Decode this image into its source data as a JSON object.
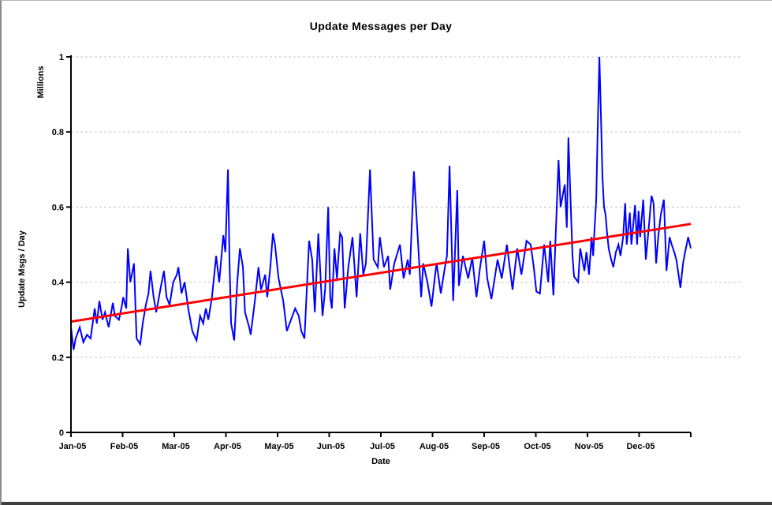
{
  "chart_data": {
    "type": "line",
    "title": "Update Messages per Day",
    "xlabel": "Date",
    "ylabel": "Update Msgs / Day",
    "y_unit_label": "Millions",
    "x_tick_labels": [
      "Jan-05",
      "Feb-05",
      "Mar-05",
      "Apr-05",
      "May-05",
      "Jun-05",
      "Jul-05",
      "Aug-05",
      "Sep-05",
      "Oct-05",
      "Nov-05",
      "Dec-05"
    ],
    "y_tick_labels": [
      "0",
      "0.2",
      "0.4",
      "0.6",
      "0.8",
      "1"
    ],
    "y_tick_values": [
      0,
      0.2,
      0.4,
      0.6,
      0.8,
      1
    ],
    "xlim_months": [
      0,
      12
    ],
    "ylim": [
      0,
      1
    ],
    "grid": "horizontal-dashed",
    "legend": "none",
    "colors": {
      "daily_line": "#0000ff",
      "trend_line": "#ff0000",
      "gridline": "#c3c3c3",
      "axis": "#000000",
      "background": "#ffffff"
    },
    "series": [
      {
        "name": "Update Msgs per Day (daily values, millions)",
        "role": "data",
        "color_key": "daily_line",
        "stroke_width": 2,
        "points_month_value": [
          [
            0,
            0.28
          ],
          [
            0.05,
            0.22
          ],
          [
            0.09,
            0.25
          ],
          [
            0.17,
            0.28
          ],
          [
            0.24,
            0.24
          ],
          [
            0.31,
            0.26
          ],
          [
            0.38,
            0.25
          ],
          [
            0.46,
            0.33
          ],
          [
            0.5,
            0.29
          ],
          [
            0.55,
            0.35
          ],
          [
            0.61,
            0.3
          ],
          [
            0.66,
            0.32
          ],
          [
            0.73,
            0.28
          ],
          [
            0.81,
            0.345
          ],
          [
            0.85,
            0.31
          ],
          [
            0.93,
            0.3
          ],
          [
            0.99,
            0.34
          ],
          [
            1.01,
            0.36
          ],
          [
            1.07,
            0.33
          ],
          [
            1.1,
            0.49
          ],
          [
            1.15,
            0.4
          ],
          [
            1.22,
            0.45
          ],
          [
            1.27,
            0.25
          ],
          [
            1.34,
            0.235
          ],
          [
            1.39,
            0.29
          ],
          [
            1.45,
            0.34
          ],
          [
            1.5,
            0.37
          ],
          [
            1.54,
            0.43
          ],
          [
            1.6,
            0.36
          ],
          [
            1.65,
            0.32
          ],
          [
            1.73,
            0.38
          ],
          [
            1.8,
            0.43
          ],
          [
            1.85,
            0.36
          ],
          [
            1.91,
            0.34
          ],
          [
            1.98,
            0.4
          ],
          [
            2.05,
            0.42
          ],
          [
            2.08,
            0.44
          ],
          [
            2.14,
            0.37
          ],
          [
            2.2,
            0.4
          ],
          [
            2.27,
            0.33
          ],
          [
            2.35,
            0.27
          ],
          [
            2.43,
            0.245
          ],
          [
            2.5,
            0.31
          ],
          [
            2.56,
            0.29
          ],
          [
            2.61,
            0.33
          ],
          [
            2.66,
            0.3
          ],
          [
            2.73,
            0.36
          ],
          [
            2.81,
            0.47
          ],
          [
            2.87,
            0.4
          ],
          [
            2.95,
            0.525
          ],
          [
            2.99,
            0.48
          ],
          [
            3.04,
            0.7
          ],
          [
            3.07,
            0.45
          ],
          [
            3.1,
            0.29
          ],
          [
            3.16,
            0.245
          ],
          [
            3.22,
            0.4
          ],
          [
            3.27,
            0.49
          ],
          [
            3.33,
            0.44
          ],
          [
            3.37,
            0.32
          ],
          [
            3.45,
            0.28
          ],
          [
            3.48,
            0.26
          ],
          [
            3.56,
            0.35
          ],
          [
            3.63,
            0.44
          ],
          [
            3.68,
            0.38
          ],
          [
            3.76,
            0.42
          ],
          [
            3.8,
            0.36
          ],
          [
            3.86,
            0.44
          ],
          [
            3.91,
            0.53
          ],
          [
            3.95,
            0.5
          ],
          [
            4.02,
            0.41
          ],
          [
            4.11,
            0.35
          ],
          [
            4.18,
            0.27
          ],
          [
            4.26,
            0.3
          ],
          [
            4.34,
            0.33
          ],
          [
            4.41,
            0.31
          ],
          [
            4.46,
            0.27
          ],
          [
            4.52,
            0.25
          ],
          [
            4.61,
            0.51
          ],
          [
            4.67,
            0.46
          ],
          [
            4.72,
            0.32
          ],
          [
            4.79,
            0.53
          ],
          [
            4.87,
            0.31
          ],
          [
            4.92,
            0.38
          ],
          [
            4.98,
            0.6
          ],
          [
            5.02,
            0.36
          ],
          [
            5.05,
            0.33
          ],
          [
            5.1,
            0.49
          ],
          [
            5.15,
            0.41
          ],
          [
            5.21,
            0.53
          ],
          [
            5.25,
            0.52
          ],
          [
            5.3,
            0.33
          ],
          [
            5.37,
            0.44
          ],
          [
            5.45,
            0.52
          ],
          [
            5.53,
            0.36
          ],
          [
            5.6,
            0.53
          ],
          [
            5.66,
            0.42
          ],
          [
            5.71,
            0.45
          ],
          [
            5.79,
            0.7
          ],
          [
            5.86,
            0.46
          ],
          [
            5.94,
            0.44
          ],
          [
            5.98,
            0.52
          ],
          [
            6.06,
            0.44
          ],
          [
            6.14,
            0.47
          ],
          [
            6.18,
            0.38
          ],
          [
            6.26,
            0.45
          ],
          [
            6.37,
            0.5
          ],
          [
            6.44,
            0.41
          ],
          [
            6.52,
            0.46
          ],
          [
            6.56,
            0.42
          ],
          [
            6.64,
            0.695
          ],
          [
            6.7,
            0.55
          ],
          [
            6.78,
            0.36
          ],
          [
            6.82,
            0.45
          ],
          [
            6.9,
            0.4
          ],
          [
            6.98,
            0.335
          ],
          [
            7.05,
            0.42
          ],
          [
            7.08,
            0.45
          ],
          [
            7.16,
            0.37
          ],
          [
            7.24,
            0.44
          ],
          [
            7.28,
            0.47
          ],
          [
            7.33,
            0.71
          ],
          [
            7.4,
            0.35
          ],
          [
            7.48,
            0.645
          ],
          [
            7.51,
            0.39
          ],
          [
            7.59,
            0.47
          ],
          [
            7.69,
            0.41
          ],
          [
            7.77,
            0.465
          ],
          [
            7.85,
            0.36
          ],
          [
            7.92,
            0.44
          ],
          [
            8,
            0.51
          ],
          [
            8.06,
            0.41
          ],
          [
            8.14,
            0.355
          ],
          [
            8.26,
            0.46
          ],
          [
            8.34,
            0.41
          ],
          [
            8.44,
            0.5
          ],
          [
            8.55,
            0.38
          ],
          [
            8.64,
            0.49
          ],
          [
            8.72,
            0.42
          ],
          [
            8.82,
            0.51
          ],
          [
            8.9,
            0.5
          ],
          [
            8.96,
            0.44
          ],
          [
            9.01,
            0.375
          ],
          [
            9.08,
            0.37
          ],
          [
            9.16,
            0.5
          ],
          [
            9.24,
            0.4
          ],
          [
            9.28,
            0.51
          ],
          [
            9.34,
            0.365
          ],
          [
            9.44,
            0.725
          ],
          [
            9.48,
            0.6
          ],
          [
            9.56,
            0.66
          ],
          [
            9.6,
            0.545
          ],
          [
            9.63,
            0.785
          ],
          [
            9.71,
            0.47
          ],
          [
            9.74,
            0.415
          ],
          [
            9.82,
            0.4
          ],
          [
            9.86,
            0.49
          ],
          [
            9.94,
            0.43
          ],
          [
            9.98,
            0.48
          ],
          [
            10.03,
            0.42
          ],
          [
            10.08,
            0.52
          ],
          [
            10.11,
            0.47
          ],
          [
            10.14,
            0.55
          ],
          [
            10.17,
            0.62
          ],
          [
            10.2,
            0.82
          ],
          [
            10.23,
            1.0
          ],
          [
            10.26,
            0.85
          ],
          [
            10.29,
            0.68
          ],
          [
            10.32,
            0.6
          ],
          [
            10.35,
            0.58
          ],
          [
            10.38,
            0.53
          ],
          [
            10.41,
            0.49
          ],
          [
            10.46,
            0.46
          ],
          [
            10.5,
            0.44
          ],
          [
            10.55,
            0.48
          ],
          [
            10.6,
            0.5
          ],
          [
            10.64,
            0.47
          ],
          [
            10.69,
            0.52
          ],
          [
            10.73,
            0.61
          ],
          [
            10.76,
            0.5
          ],
          [
            10.82,
            0.585
          ],
          [
            10.85,
            0.5
          ],
          [
            10.92,
            0.605
          ],
          [
            10.96,
            0.5
          ],
          [
            10.99,
            0.59
          ],
          [
            11.02,
            0.52
          ],
          [
            11.08,
            0.62
          ],
          [
            11.13,
            0.46
          ],
          [
            11.19,
            0.55
          ],
          [
            11.24,
            0.63
          ],
          [
            11.28,
            0.61
          ],
          [
            11.33,
            0.45
          ],
          [
            11.37,
            0.52
          ],
          [
            11.42,
            0.58
          ],
          [
            11.48,
            0.62
          ],
          [
            11.53,
            0.43
          ],
          [
            11.59,
            0.52
          ],
          [
            11.63,
            0.5
          ],
          [
            11.68,
            0.48
          ],
          [
            11.72,
            0.46
          ],
          [
            11.8,
            0.385
          ],
          [
            11.85,
            0.45
          ],
          [
            11.89,
            0.48
          ],
          [
            11.95,
            0.52
          ],
          [
            12,
            0.49
          ]
        ]
      },
      {
        "name": "Linear trend",
        "role": "trendline",
        "color_key": "trend_line",
        "stroke_width": 3,
        "points_month_value": [
          [
            0,
            0.295
          ],
          [
            12,
            0.555
          ]
        ]
      }
    ]
  }
}
